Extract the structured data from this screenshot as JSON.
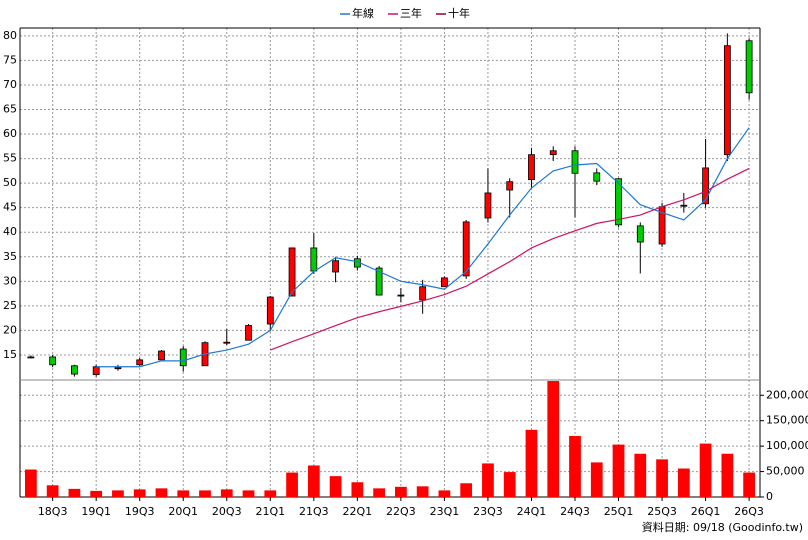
{
  "chart_data": {
    "type": "candlestick",
    "categories": [
      null,
      "18Q3",
      null,
      "19Q1",
      null,
      "19Q3",
      null,
      "20Q1",
      null,
      "20Q3",
      null,
      "21Q1",
      null,
      "21Q3",
      null,
      "22Q1",
      null,
      "22Q3",
      null,
      "23Q1",
      null,
      "23Q3",
      null,
      "24Q1",
      null,
      "24Q3",
      null,
      "25Q1",
      null,
      "25Q3",
      null,
      "26Q1",
      null,
      "26Q3"
    ],
    "open": [
      14.6,
      14.6,
      12.8,
      11.0,
      12.4,
      13.0,
      14.0,
      16.2,
      12.8,
      17.6,
      18.0,
      21.3,
      27.0,
      36.8,
      31.9,
      34.6,
      32.7,
      27.2,
      26.2,
      28.9,
      31.1,
      42.9,
      48.6,
      50.7,
      55.8,
      56.6,
      52.1,
      50.9,
      41.3,
      37.6,
      45.5,
      45.8,
      55.8,
      79.0
    ],
    "high": [
      14.9,
      15.0,
      13.0,
      13.0,
      13.0,
      14.4,
      16.0,
      16.8,
      17.8,
      20.3,
      21.3,
      27.0,
      36.9,
      39.8,
      35.0,
      35.2,
      33.1,
      28.6,
      30.3,
      31.0,
      42.5,
      53.0,
      51.0,
      57.2,
      57.5,
      57.5,
      53.0,
      51.0,
      42.0,
      46.0,
      48.0,
      59.0,
      80.5,
      79.5
    ],
    "low": [
      14.3,
      12.5,
      10.6,
      10.6,
      11.8,
      12.8,
      14.0,
      11.6,
      12.8,
      17.0,
      18.0,
      19.8,
      27.0,
      31.5,
      29.8,
      32.2,
      27.2,
      25.7,
      23.4,
      28.9,
      30.5,
      42.0,
      43.0,
      49.0,
      54.5,
      43.0,
      49.6,
      41.0,
      31.6,
      37.0,
      44.0,
      45.0,
      54.5,
      67.0
    ],
    "close": [
      14.6,
      13.0,
      11.1,
      12.6,
      12.4,
      14.0,
      15.8,
      12.8,
      17.5,
      17.6,
      21.0,
      26.8,
      36.8,
      32.1,
      34.2,
      32.9,
      27.2,
      27.2,
      28.9,
      30.7,
      42.1,
      48.0,
      50.3,
      55.8,
      56.6,
      52.0,
      50.4,
      41.5,
      38.0,
      45.2,
      45.5,
      53.1,
      78.0,
      68.4
    ],
    "up_color": "#ff0000",
    "down_color": "#00cc00",
    "ylim": [
      9.9,
      81.6
    ],
    "yticks": [
      15,
      20,
      25,
      30,
      35,
      40,
      45,
      50,
      55,
      60,
      65,
      70,
      75,
      80
    ],
    "grid": true,
    "series": [
      {
        "name": "年線",
        "color": "#1e78d6",
        "values": [
          null,
          null,
          null,
          12.6,
          12.6,
          12.6,
          13.8,
          13.8,
          15.2,
          16.0,
          17.2,
          20.0,
          27.8,
          32.0,
          34.8,
          34.0,
          32.0,
          30.0,
          29.3,
          28.4,
          32.0,
          37.6,
          43.5,
          49.0,
          52.5,
          53.7,
          54.0,
          50.0,
          45.6,
          44.0,
          42.5,
          46.6,
          55.0,
          61.3
        ]
      },
      {
        "name": "三年",
        "color": "#cc1466",
        "values": [
          null,
          null,
          null,
          null,
          null,
          null,
          null,
          null,
          null,
          null,
          null,
          16.0,
          17.7,
          19.3,
          21.0,
          22.6,
          23.8,
          24.9,
          26.0,
          27.3,
          29.0,
          31.5,
          34.0,
          36.8,
          38.7,
          40.3,
          41.8,
          42.6,
          43.5,
          45.2,
          46.6,
          48.3,
          50.8,
          53.0
        ]
      },
      {
        "name": "十年",
        "color": "#990033",
        "values": [
          null,
          null,
          null,
          null,
          null,
          null,
          null,
          null,
          null,
          null,
          null,
          null,
          null,
          null,
          null,
          null,
          null,
          null,
          null,
          null,
          null,
          null,
          null,
          null,
          null,
          null,
          null,
          null,
          null,
          null,
          null,
          null,
          null,
          null
        ]
      }
    ],
    "volume": {
      "color": "#ff0000",
      "values": [
        54000,
        23000,
        16000,
        12000,
        13000,
        15000,
        17000,
        13000,
        13000,
        15000,
        13000,
        13000,
        48000,
        62000,
        41000,
        29000,
        17000,
        20000,
        21000,
        13000,
        27000,
        66000,
        49000,
        132000,
        228000,
        120000,
        68000,
        103000,
        85000,
        74000,
        56000,
        105000,
        85000,
        48000
      ],
      "ylim": [
        0,
        230000
      ],
      "yticks": [
        0,
        {
          "value": 50000,
          "label": "50,000"
        },
        {
          "value": 100000,
          "label": "100,000"
        },
        {
          "value": 150000,
          "label": "150,000"
        },
        {
          "value": 200000,
          "label": "200,000"
        }
      ]
    },
    "source": "資料日期: 09/18  (Goodinfo.tw)"
  }
}
